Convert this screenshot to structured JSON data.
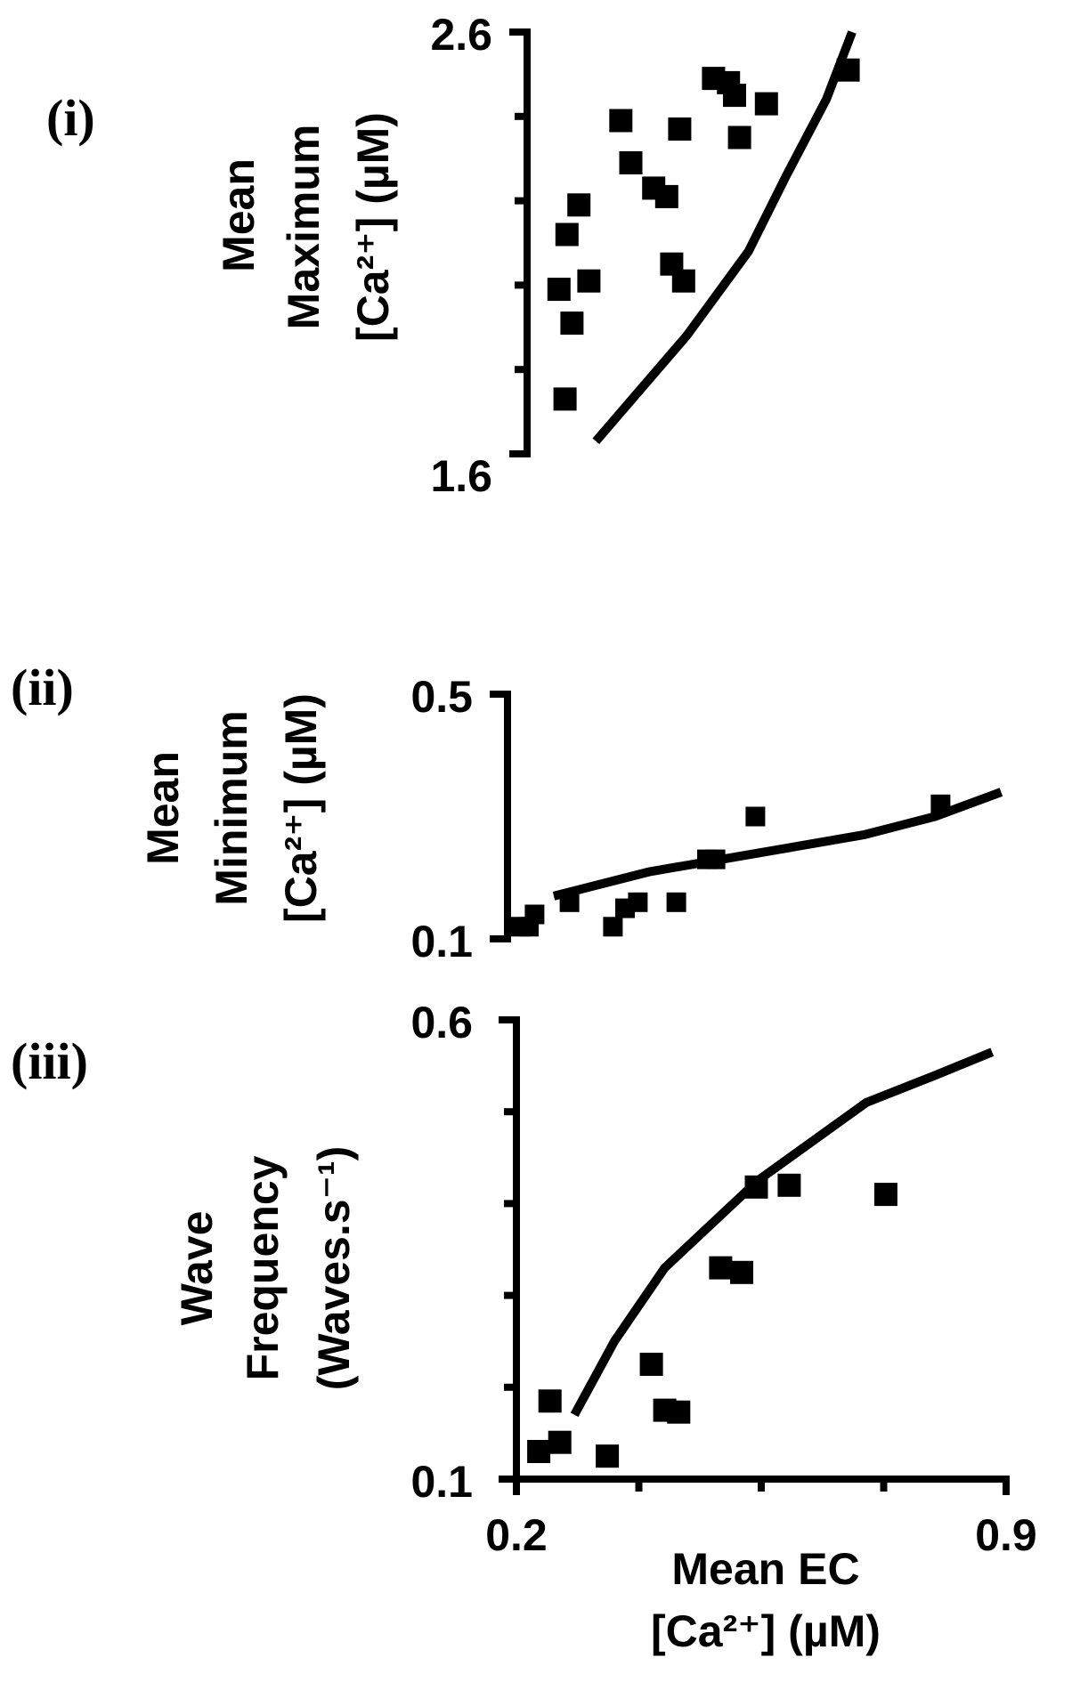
{
  "chart_data": [
    {
      "type": "scatter",
      "panel_label": "(i)",
      "ylabel_lines": [
        "Mean",
        "Maximum",
        "[Ca²⁺] (µM)"
      ],
      "y_tick_labels": [
        "2.6",
        "1.6"
      ],
      "ylim": [
        1.6,
        2.6
      ],
      "xlim": [
        0.2,
        0.6
      ],
      "minor_ticks": [
        1.8,
        2.0,
        2.2,
        2.4
      ],
      "points": [
        {
          "x": 0.238,
          "y": 1.73
        },
        {
          "x": 0.232,
          "y": 1.99
        },
        {
          "x": 0.245,
          "y": 1.91
        },
        {
          "x": 0.24,
          "y": 2.12
        },
        {
          "x": 0.252,
          "y": 2.19
        },
        {
          "x": 0.262,
          "y": 2.01
        },
        {
          "x": 0.294,
          "y": 2.39
        },
        {
          "x": 0.304,
          "y": 2.29
        },
        {
          "x": 0.327,
          "y": 2.23
        },
        {
          "x": 0.34,
          "y": 2.21
        },
        {
          "x": 0.345,
          "y": 2.05
        },
        {
          "x": 0.357,
          "y": 2.01
        },
        {
          "x": 0.353,
          "y": 2.37
        },
        {
          "x": 0.387,
          "y": 2.49
        },
        {
          "x": 0.402,
          "y": 2.48
        },
        {
          "x": 0.408,
          "y": 2.45
        },
        {
          "x": 0.413,
          "y": 2.35
        },
        {
          "x": 0.44,
          "y": 2.43
        },
        {
          "x": 0.522,
          "y": 2.51
        }
      ],
      "line": [
        {
          "x": 0.269,
          "y": 1.63
        },
        {
          "x": 0.36,
          "y": 1.88
        },
        {
          "x": 0.422,
          "y": 2.08
        },
        {
          "x": 0.46,
          "y": 2.26
        },
        {
          "x": 0.5,
          "y": 2.44
        },
        {
          "x": 0.526,
          "y": 2.6
        }
      ]
    },
    {
      "type": "scatter",
      "panel_label": "(ii)",
      "ylabel_lines": [
        "Mean",
        "Minimum",
        "[Ca²⁺] (µM)"
      ],
      "y_tick_labels": [
        "0.5",
        "0.1"
      ],
      "ylim": [
        0.1,
        0.5
      ],
      "xlim": [
        0.2,
        0.9
      ],
      "minor_ticks": [],
      "points": [
        {
          "x": 0.218,
          "y": 0.12
        },
        {
          "x": 0.23,
          "y": 0.12
        },
        {
          "x": 0.238,
          "y": 0.14
        },
        {
          "x": 0.287,
          "y": 0.16
        },
        {
          "x": 0.348,
          "y": 0.12
        },
        {
          "x": 0.365,
          "y": 0.15
        },
        {
          "x": 0.383,
          "y": 0.16
        },
        {
          "x": 0.437,
          "y": 0.16
        },
        {
          "x": 0.48,
          "y": 0.23
        },
        {
          "x": 0.492,
          "y": 0.23
        },
        {
          "x": 0.548,
          "y": 0.3
        },
        {
          "x": 0.808,
          "y": 0.32
        }
      ],
      "line": [
        {
          "x": 0.265,
          "y": 0.17
        },
        {
          "x": 0.4,
          "y": 0.21
        },
        {
          "x": 0.55,
          "y": 0.24
        },
        {
          "x": 0.7,
          "y": 0.27
        },
        {
          "x": 0.8,
          "y": 0.3
        },
        {
          "x": 0.893,
          "y": 0.34
        }
      ]
    },
    {
      "type": "scatter",
      "panel_label": "(iii)",
      "ylabel_lines": [
        "Wave",
        "Frequency",
        "(Waves.s⁻¹)"
      ],
      "y_tick_labels": [
        "0.6",
        "0.1"
      ],
      "ylim": [
        0.1,
        0.6
      ],
      "xlim": [
        0.2,
        0.9
      ],
      "x_tick_labels": [
        "0.2",
        "0.9"
      ],
      "xlabel_lines": [
        "Mean EC",
        "[Ca²⁺] (µM)"
      ],
      "minor_ticks": [
        0.2,
        0.3,
        0.4,
        0.5
      ],
      "x_minor_ticks": [
        0.375,
        0.55,
        0.725
      ],
      "points": [
        {
          "x": 0.232,
          "y": 0.13
        },
        {
          "x": 0.248,
          "y": 0.185
        },
        {
          "x": 0.262,
          "y": 0.14
        },
        {
          "x": 0.33,
          "y": 0.125
        },
        {
          "x": 0.393,
          "y": 0.225
        },
        {
          "x": 0.412,
          "y": 0.175
        },
        {
          "x": 0.432,
          "y": 0.173
        },
        {
          "x": 0.492,
          "y": 0.33
        },
        {
          "x": 0.522,
          "y": 0.325
        },
        {
          "x": 0.543,
          "y": 0.418
        },
        {
          "x": 0.59,
          "y": 0.42
        },
        {
          "x": 0.728,
          "y": 0.41
        }
      ],
      "line": [
        {
          "x": 0.283,
          "y": 0.17
        },
        {
          "x": 0.34,
          "y": 0.25
        },
        {
          "x": 0.412,
          "y": 0.33
        },
        {
          "x": 0.545,
          "y": 0.425
        },
        {
          "x": 0.7,
          "y": 0.51
        },
        {
          "x": 0.8,
          "y": 0.54
        },
        {
          "x": 0.88,
          "y": 0.565
        }
      ]
    }
  ]
}
